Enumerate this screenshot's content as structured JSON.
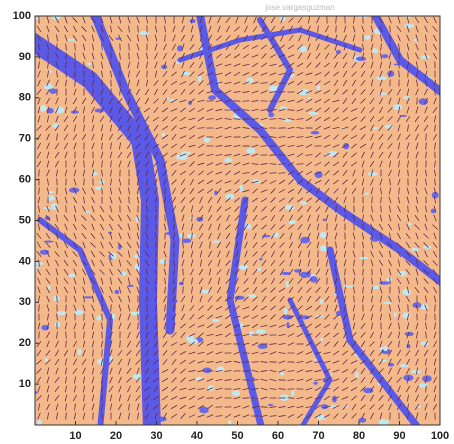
{
  "chart_data": {
    "type": "field",
    "watermark": "jose.vargasguzman",
    "xlim": [
      0,
      100
    ],
    "xticks": [
      10,
      20,
      30,
      40,
      50,
      60,
      70,
      80,
      90,
      100
    ],
    "ylim": [
      0,
      100
    ],
    "yticks": [
      10,
      20,
      30,
      40,
      50,
      60,
      70,
      80,
      90,
      100
    ]
  }
}
